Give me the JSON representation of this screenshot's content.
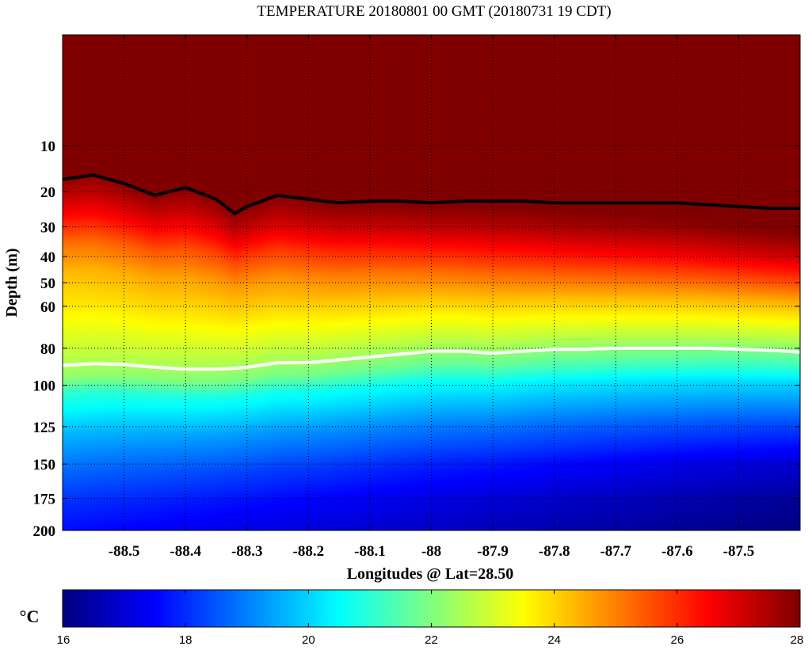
{
  "chart_data": {
    "type": "heatmap",
    "title": "TEMPERATURE 20180801 00 GMT (20180731 19 CDT)",
    "xlabel": "Longitudes @ Lat=28.50",
    "ylabel": "Depth (m)",
    "xlim": [
      -88.6,
      -87.4
    ],
    "ylim": [
      200,
      0
    ],
    "y_scale": "sqrt",
    "x_ticks": [
      -88.5,
      -88.4,
      -88.3,
      -88.2,
      -88.1,
      -88,
      -87.9,
      -87.8,
      -87.7,
      -87.6,
      -87.5
    ],
    "x_tick_labels": [
      "-88.5",
      "-88.4",
      "-88.3",
      "-88.2",
      "-88.1",
      "-88",
      "-87.9",
      "-87.8",
      "-87.7",
      "-87.6",
      "-87.5"
    ],
    "y_ticks": [
      10,
      20,
      30,
      40,
      50,
      60,
      80,
      100,
      125,
      150,
      175,
      200
    ],
    "y_tick_labels": [
      "10",
      "20",
      "30",
      "40",
      "50",
      "60",
      "80",
      "100",
      "125",
      "150",
      "175",
      "200"
    ],
    "grid": true,
    "colorbar": {
      "unit": "°C",
      "range": [
        16,
        28
      ],
      "ticks": [
        "16",
        "18",
        "20",
        "22",
        "24",
        "26",
        "28"
      ],
      "colormap": "jet"
    },
    "x": [
      -88.6,
      -88.55,
      -88.5,
      -88.45,
      -88.4,
      -88.35,
      -88.32,
      -88.3,
      -88.25,
      -88.2,
      -88.15,
      -88.1,
      -88.05,
      -88.0,
      -87.95,
      -87.9,
      -87.85,
      -87.8,
      -87.75,
      -87.7,
      -87.65,
      -87.6,
      -87.55,
      -87.5,
      -87.45,
      -87.4
    ],
    "series": [
      {
        "contour_level": 28,
        "line_color": "#000000",
        "depth": [
          17,
          16,
          18,
          21,
          19,
          22,
          26,
          24,
          21,
          22,
          23,
          22.5,
          22.5,
          23,
          22.5,
          22.5,
          22.5,
          23,
          23,
          23,
          23,
          23,
          23.5,
          24,
          24.5,
          24.5
        ]
      },
      {
        "contour_level": 22,
        "line_color": "#ffffff",
        "depth": [
          89,
          88,
          88.5,
          90,
          91,
          91,
          90.5,
          90,
          87.5,
          87.5,
          86,
          84.5,
          83,
          81.5,
          81.5,
          82.5,
          81.5,
          80.5,
          80.5,
          80,
          80,
          80,
          80,
          80.5,
          81,
          82
        ]
      }
    ],
    "profile": {
      "depth": [
        0,
        20,
        28,
        35,
        42,
        50,
        60,
        70,
        80,
        90,
        100,
        125,
        150,
        175,
        200
      ],
      "temperature_west": [
        28.3,
        28.3,
        27.8,
        26.5,
        25.2,
        24.3,
        23.8,
        23.2,
        22.7,
        22.2,
        21.0,
        19.7,
        18.8,
        18.1,
        17.6
      ],
      "temperature_east": [
        28.3,
        28.3,
        28.3,
        28.0,
        27.2,
        26.0,
        24.5,
        23.4,
        22.3,
        21.2,
        20.0,
        18.3,
        17.0,
        16.3,
        16.0
      ]
    }
  }
}
